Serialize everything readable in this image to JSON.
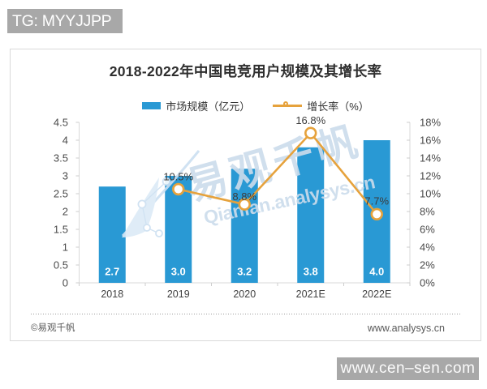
{
  "top_badge": {
    "text": "TG: MYYJJPP",
    "bg": "#a8a8a8",
    "color": "#ffffff"
  },
  "bottom_badge": {
    "text": "www.cen–sen.com",
    "bg": "#a8a8a8",
    "color": "#ffffff"
  },
  "chart_data": {
    "type": "bar+line",
    "title": "2018-2022年中国电竞用户规模及其增长率",
    "categories": [
      "2018",
      "2019",
      "2020",
      "2021E",
      "2022E"
    ],
    "series": [
      {
        "name": "市场规模（亿元）",
        "type": "bar",
        "axis": "left",
        "values": [
          2.7,
          3.0,
          3.2,
          3.8,
          4.0
        ],
        "labels": [
          "2.7",
          "3.0",
          "3.2",
          "3.8",
          "4.0"
        ],
        "color": "#2999d4"
      },
      {
        "name": "增长率（%）",
        "type": "line",
        "axis": "right",
        "values": [
          null,
          10.5,
          8.8,
          16.8,
          7.7
        ],
        "labels": [
          null,
          "10.5%",
          "8.8%",
          "16.8%",
          "7.7%"
        ],
        "color": "#e6a23c"
      }
    ],
    "left_axis": {
      "min": 0,
      "max": 4.5,
      "step": 0.5,
      "ticks": [
        "0",
        "0.5",
        "1",
        "1.5",
        "2",
        "2.5",
        "3",
        "3.5",
        "4",
        "4.5"
      ]
    },
    "right_axis": {
      "min": 0,
      "max": 18,
      "step": 2,
      "ticks": [
        "0%",
        "2%",
        "4%",
        "6%",
        "8%",
        "10%",
        "12%",
        "14%",
        "16%",
        "18%"
      ]
    },
    "grid": false,
    "legend_position": "top"
  },
  "watermark": {
    "cjk": "易观千帆",
    "latin": "Qianfan.analysys.cn",
    "color": "#ccdcec"
  },
  "footer": {
    "left": "©易观千帆",
    "right": "www.analysys.cn"
  }
}
